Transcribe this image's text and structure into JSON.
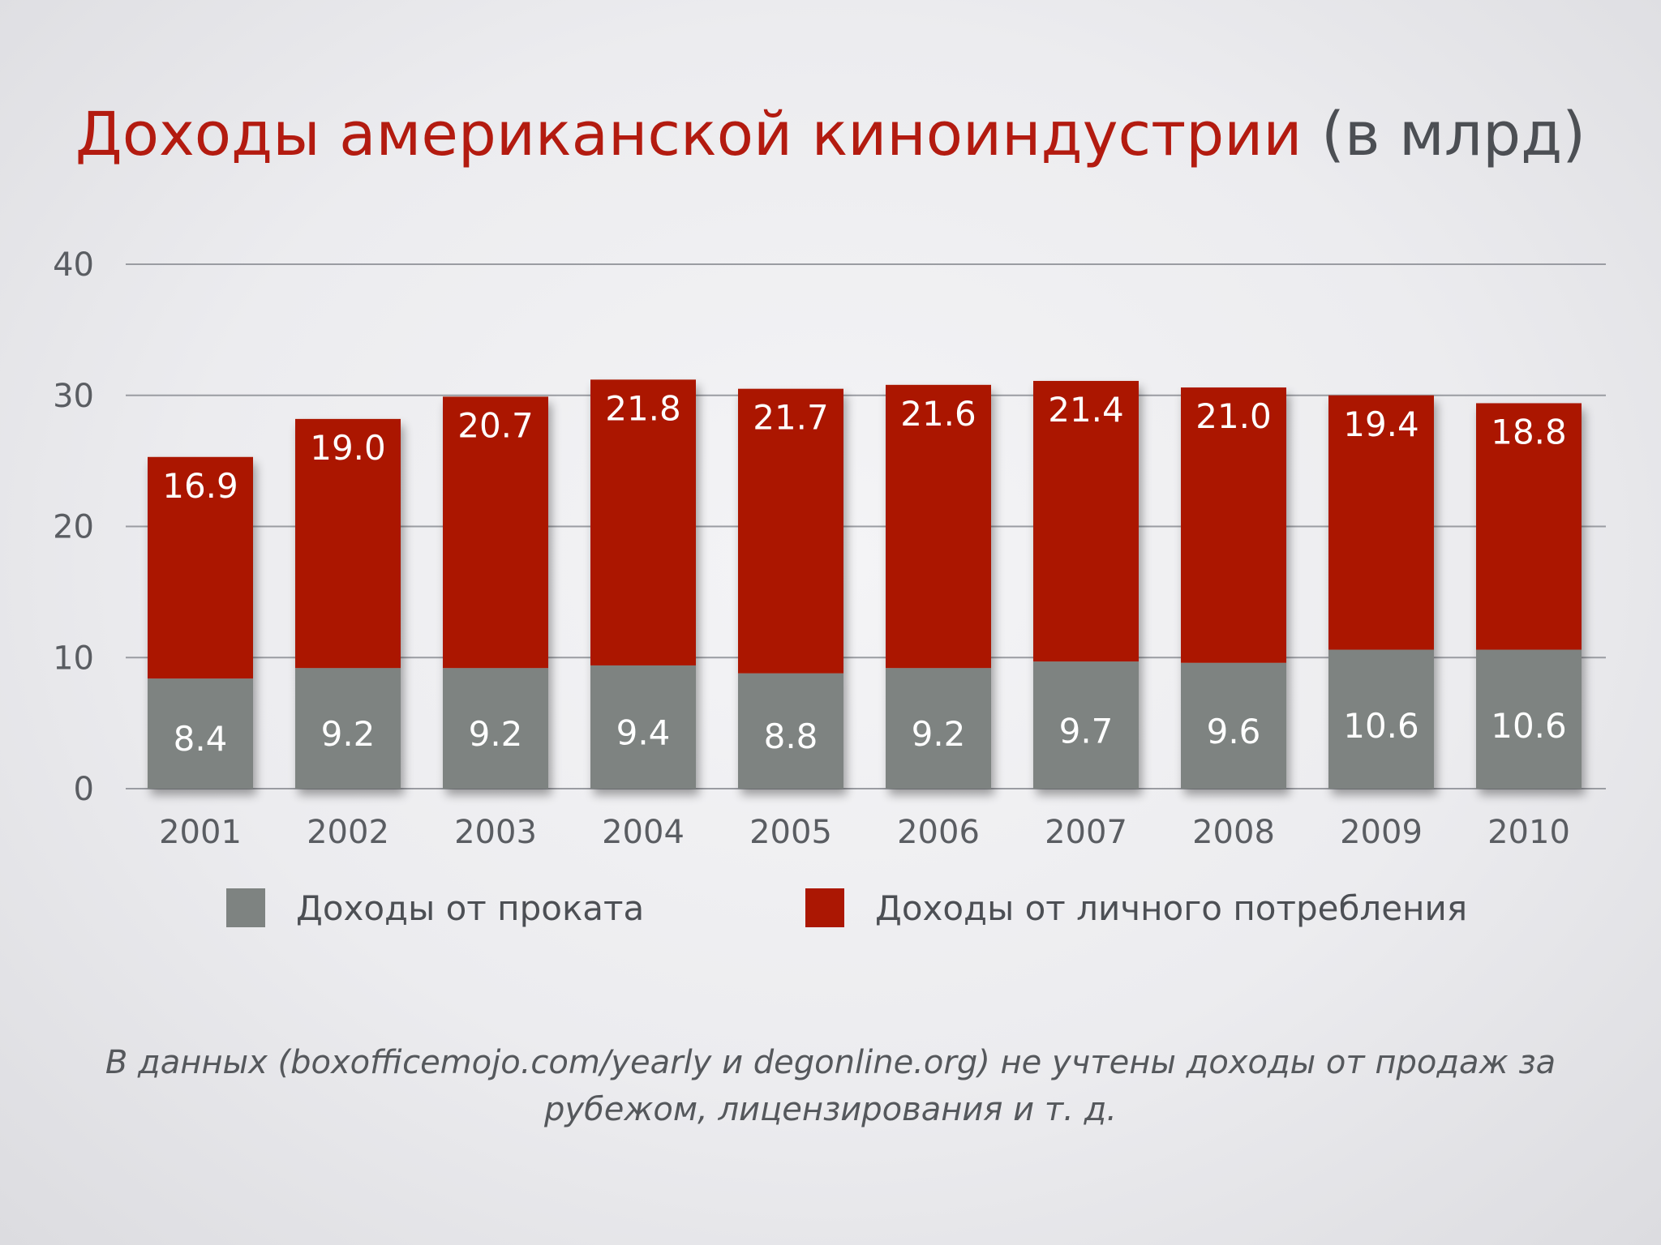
{
  "title": {
    "main": "Доходы американской киноиндустрии",
    "unit": "(в млрд)"
  },
  "colors": {
    "box_office": "#7e8381",
    "consumer": "#ab1703",
    "grid": "#9a9ca2",
    "axis_text": "#5a5d62",
    "bar_label": "#ffffff"
  },
  "chart_data": {
    "type": "bar",
    "stacked": true,
    "categories": [
      "2001",
      "2002",
      "2003",
      "2004",
      "2005",
      "2006",
      "2007",
      "2008",
      "2009",
      "2010"
    ],
    "series": [
      {
        "name": "Доходы от проката",
        "color": "#7e8381",
        "values": [
          8.4,
          9.2,
          9.2,
          9.4,
          8.8,
          9.2,
          9.7,
          9.6,
          10.6,
          10.6
        ],
        "labels": [
          "8.4",
          "9.2",
          "9.2",
          "9.4",
          "8.8",
          "9.2",
          "9.7",
          "9.6",
          "10.6",
          "10.6"
        ]
      },
      {
        "name": "Доходы от личного потребления",
        "color": "#ab1703",
        "values": [
          16.9,
          19.0,
          20.7,
          21.8,
          21.7,
          21.6,
          21.4,
          21.0,
          19.4,
          18.8
        ],
        "labels": [
          "16.9",
          "19.0",
          "20.7",
          "21.8",
          "21.7",
          "21.6",
          "21.4",
          "21.0",
          "19.4",
          "18.8"
        ]
      }
    ],
    "ylim": [
      0,
      40
    ],
    "yticks": [
      "0",
      "10",
      "20",
      "30",
      "40"
    ],
    "grid": true,
    "legend_position": "bottom"
  },
  "legend": {
    "items": [
      {
        "label": "Доходы от проката",
        "color": "#7e8381"
      },
      {
        "label": "Доходы от личного потребления",
        "color": "#ab1703"
      }
    ]
  },
  "note": {
    "line1": "В данных (boxofficemojo.com/yearly и degonline.org) не учтены доходы от продаж за",
    "line2": "рубежом, лицензирования и т. д."
  }
}
